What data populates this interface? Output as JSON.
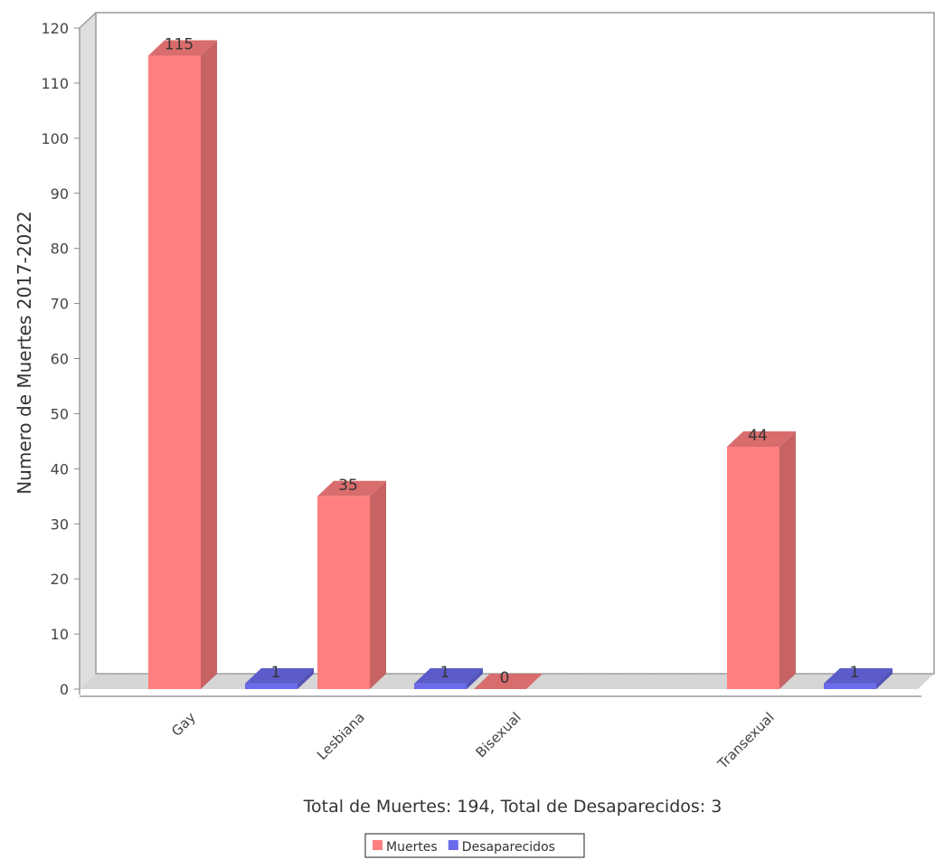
{
  "chart_data": {
    "type": "bar",
    "three_d": true,
    "categories": [
      "Gay",
      "Lesbiana",
      "Bisexual",
      "Transexual"
    ],
    "series": [
      {
        "name": "Muertes",
        "values": [
          115,
          35,
          0,
          44
        ],
        "color": "#ff7f7f"
      },
      {
        "name": "Desaparecidos",
        "values": [
          1,
          1,
          null,
          1
        ],
        "color": "#6b6bec"
      }
    ],
    "value_labels": [
      [
        "115",
        "35",
        "0",
        "44"
      ],
      [
        "1",
        "1",
        "",
        "1"
      ]
    ],
    "ylabel": "Numero de Muertes 2017-2022",
    "xlabel": "Total de Muertes: 194, Total de Desaparecidos: 3",
    "ylim": [
      0,
      120
    ],
    "yticks": [
      0,
      10,
      20,
      30,
      40,
      50,
      60,
      70,
      80,
      90,
      100,
      110,
      120
    ],
    "ytick_labels": [
      "0",
      "10",
      "20",
      "30",
      "40",
      "50",
      "60",
      "70",
      "80",
      "90",
      "100",
      "110",
      "120"
    ],
    "grid": false,
    "legend_position": "bottom-center",
    "category_label_rotation": "diagonal"
  }
}
